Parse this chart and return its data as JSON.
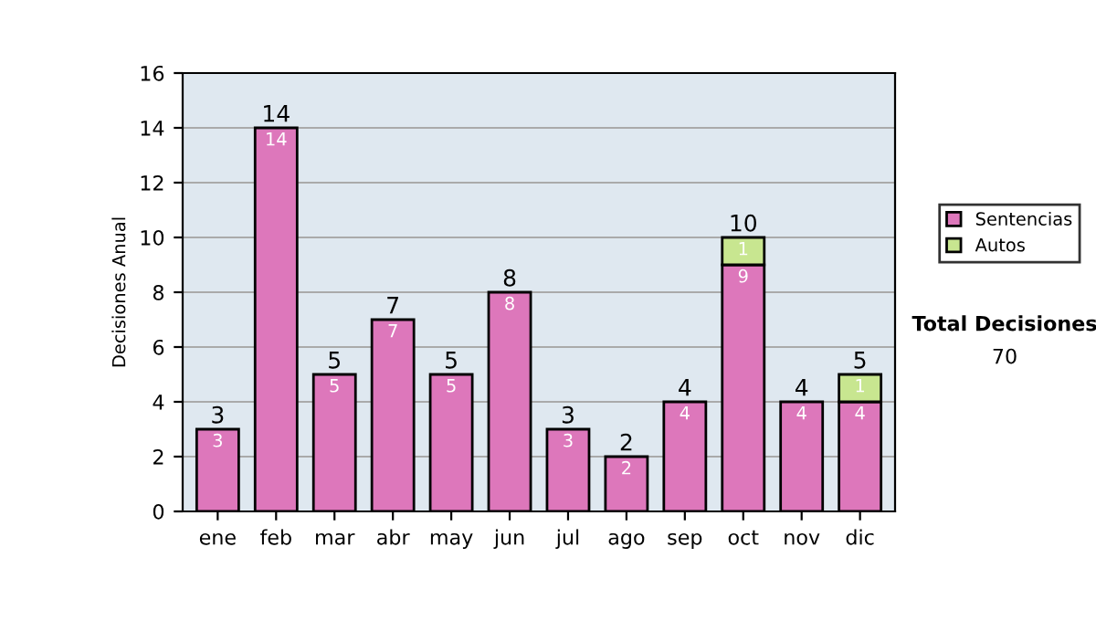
{
  "chart_data": {
    "type": "bar",
    "stacked": true,
    "ylabel": "Decisiones Anual",
    "categories": [
      "ene",
      "feb",
      "mar",
      "abr",
      "may",
      "jun",
      "jul",
      "ago",
      "sep",
      "oct",
      "nov",
      "dic"
    ],
    "series": [
      {
        "name": "Sentencias",
        "color": "#dd77bb",
        "values": [
          3,
          14,
          5,
          7,
          5,
          8,
          3,
          2,
          4,
          9,
          4,
          4
        ]
      },
      {
        "name": "Autos",
        "color": "#c8e690",
        "values": [
          null,
          null,
          null,
          null,
          null,
          null,
          null,
          null,
          null,
          1,
          null,
          1
        ]
      }
    ],
    "data_labels": true,
    "totals": [
      "3",
      "14",
      "5",
      "7",
      "5",
      "8",
      "3",
      "2",
      "4",
      "10",
      "4",
      "5"
    ],
    "ylim": [
      0,
      16
    ],
    "yticks": [
      0,
      2,
      4,
      6,
      8,
      10,
      12,
      14,
      16
    ],
    "grid": "y",
    "legend": "right",
    "annotations": [
      "Total Decisiones",
      "70"
    ]
  }
}
